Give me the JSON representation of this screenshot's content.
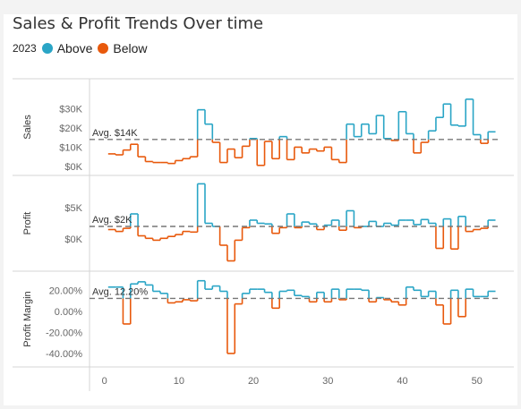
{
  "title": "Sales & Profit Trends Over time",
  "legend": {
    "year": "2023",
    "items": [
      {
        "label": "Above",
        "color": "#2aa5c6"
      },
      {
        "label": "Below",
        "color": "#e8590c"
      }
    ]
  },
  "chart_data": {
    "type": "line",
    "step": true,
    "x": [
      1,
      2,
      3,
      4,
      5,
      6,
      7,
      8,
      9,
      10,
      11,
      12,
      13,
      14,
      15,
      16,
      17,
      18,
      19,
      20,
      21,
      22,
      23,
      24,
      25,
      26,
      27,
      28,
      29,
      30,
      31,
      32,
      33,
      34,
      35,
      36,
      37,
      38,
      39,
      40,
      41,
      42,
      43,
      44,
      45,
      46,
      47,
      48,
      49,
      50,
      51,
      52
    ],
    "x_ticks": [
      "0",
      "10",
      "20",
      "30",
      "40",
      "50"
    ],
    "x_tick_values": [
      0,
      10,
      20,
      30,
      40,
      50
    ],
    "xlim": [
      -2,
      54
    ],
    "panels": [
      {
        "name": "Sales",
        "ylabel": "Sales",
        "ylim": [
          -1000,
          41000
        ],
        "y_ticks": [
          "$0K",
          "$10K",
          "$20K",
          "$30K"
        ],
        "y_tick_values": [
          0,
          10000,
          20000,
          30000
        ],
        "avg": 14000,
        "avg_label": "Avg. $14K",
        "values": [
          6500,
          6000,
          8500,
          11500,
          5000,
          2500,
          2000,
          2000,
          1500,
          3000,
          4000,
          5000,
          29500,
          22000,
          12500,
          2000,
          9000,
          4500,
          10500,
          14500,
          500,
          13000,
          4000,
          15500,
          3500,
          10000,
          7000,
          9000,
          8000,
          10000,
          3500,
          2000,
          22000,
          15500,
          22000,
          17000,
          26500,
          14500,
          13500,
          28500,
          17000,
          7000,
          12500,
          18500,
          25500,
          32500,
          21500,
          21000,
          35000,
          16500,
          12000,
          18000
        ],
        "above_color": "#2aa5c6",
        "below_color": "#e8590c"
      },
      {
        "name": "Profit",
        "ylabel": "Profit",
        "ylim": [
          -4000,
          9000
        ],
        "y_ticks": [
          "$0K",
          "$5K"
        ],
        "y_tick_values": [
          0,
          5000
        ],
        "avg": 2000,
        "avg_label": "Avg. $2K",
        "values": [
          1500,
          1200,
          1700,
          4000,
          500,
          100,
          -200,
          100,
          400,
          700,
          1200,
          1100,
          8800,
          2500,
          2000,
          -1000,
          -3500,
          -200,
          1800,
          3000,
          2500,
          2400,
          900,
          1800,
          4000,
          1800,
          2700,
          2400,
          1500,
          2200,
          3000,
          1400,
          4500,
          1800,
          2000,
          2800,
          2000,
          2500,
          2200,
          3000,
          3000,
          2300,
          3100,
          2500,
          -1500,
          3200,
          -1600,
          3600,
          1200,
          1500,
          1700,
          3000
        ],
        "above_color": "#2aa5c6",
        "below_color": "#e8590c"
      },
      {
        "name": "Profit Margin",
        "ylabel": "Profit Margin",
        "ylim": [
          -0.46,
          0.33
        ],
        "y_ticks": [
          "-40.00%",
          "-20.00%",
          "0.00%",
          "20.00%"
        ],
        "y_tick_values": [
          -0.4,
          -0.2,
          0,
          0.2
        ],
        "avg": 0.122,
        "avg_label": "Avg. 12.20%",
        "values": [
          0.23,
          0.23,
          -0.12,
          0.26,
          0.28,
          0.25,
          0.19,
          0.17,
          0.08,
          0.09,
          0.11,
          0.1,
          0.29,
          0.21,
          0.24,
          0.19,
          -0.4,
          0.07,
          0.17,
          0.21,
          0.21,
          0.18,
          0.03,
          0.19,
          0.2,
          0.15,
          0.14,
          0.09,
          0.18,
          0.09,
          0.21,
          0.11,
          0.21,
          0.21,
          0.2,
          0.09,
          0.13,
          0.11,
          0.09,
          0.06,
          0.23,
          0.2,
          0.14,
          0.19,
          0.06,
          -0.12,
          0.2,
          -0.05,
          0.21,
          0.14,
          0.14,
          0.19
        ],
        "above_color": "#2aa5c6",
        "below_color": "#e8590c"
      }
    ],
    "grid": false,
    "reference_line": "average (dashed)",
    "legend_position": "top-left"
  }
}
